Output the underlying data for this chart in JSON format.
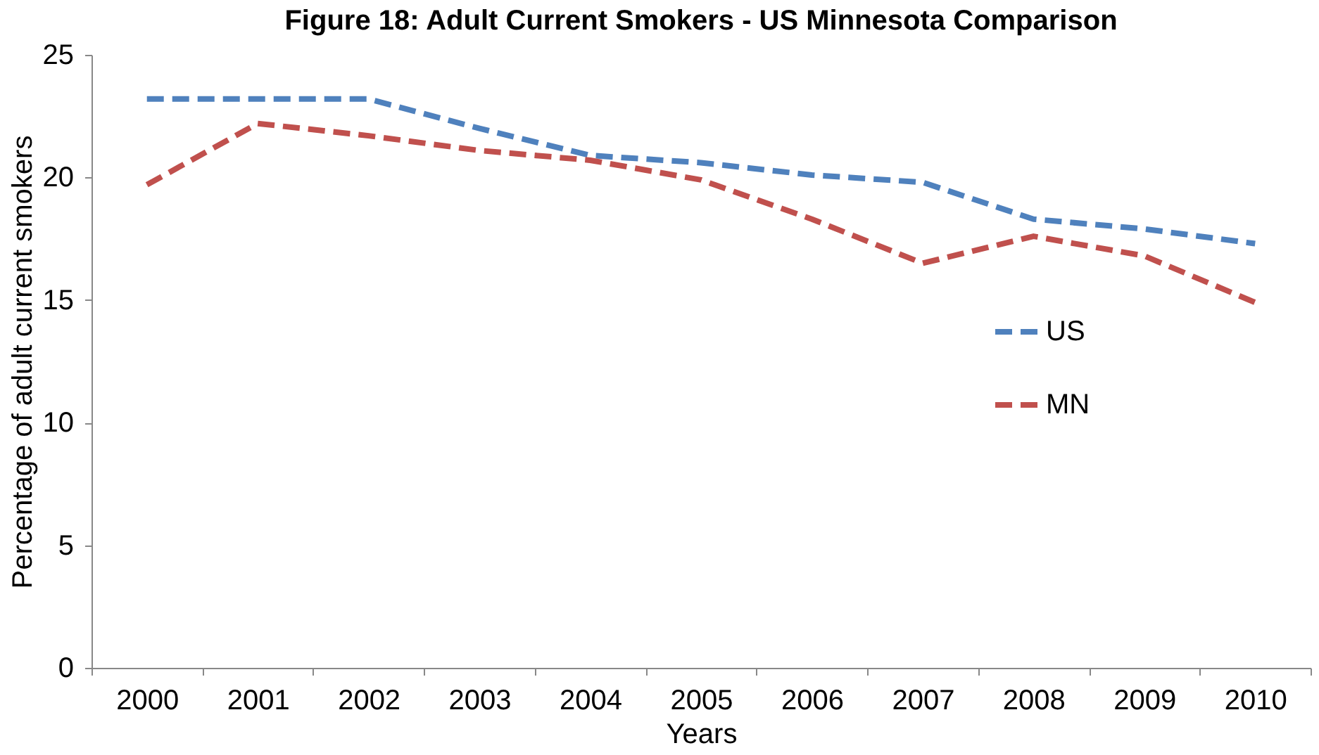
{
  "chart_data": {
    "type": "line",
    "title": "Figure 18: Adult Current Smokers - US Minnesota Comparison",
    "xlabel": "Years",
    "ylabel": "Percentage of adult current  smokers",
    "categories": [
      "2000",
      "2001",
      "2002",
      "2003",
      "2004",
      "2005",
      "2006",
      "2007",
      "2008",
      "2009",
      "2010"
    ],
    "series": [
      {
        "name": "US",
        "color": "#4f81bd",
        "values": [
          23.2,
          23.2,
          23.2,
          22.0,
          20.9,
          20.6,
          20.1,
          19.8,
          18.3,
          17.9,
          17.3
        ]
      },
      {
        "name": "MN",
        "color": "#c0504d",
        "values": [
          19.7,
          22.2,
          21.7,
          21.1,
          20.7,
          19.9,
          18.3,
          16.5,
          17.6,
          16.8,
          14.9
        ]
      }
    ],
    "ylim": [
      0,
      25
    ],
    "yticks": [
      0,
      5,
      10,
      15,
      20,
      25
    ],
    "grid": false,
    "legend": "right",
    "line_style": "dashed",
    "marker": "none"
  }
}
